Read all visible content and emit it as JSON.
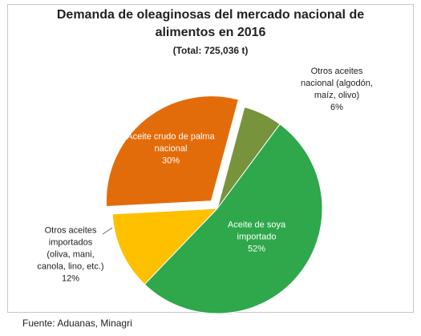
{
  "chart_data": {
    "type": "pie",
    "title": "Demanda de oleaginosas del mercado nacional de alimentos en 2016",
    "subtitle": "(Total: 725,036 t)",
    "categories": [
      "Otros aceites nacional (algodón, maíz, olivo)",
      "Aceite de soya importado",
      "Otros aceites importados (oliva, mani, canola, lino, etc.)",
      "Aceite crudo de palma nacional"
    ],
    "values": [
      6,
      52,
      12,
      30
    ],
    "value_labels": [
      "6%",
      "52%",
      "12%",
      "30%"
    ],
    "colors": [
      "#77933c",
      "#2ea84a",
      "#ffc000",
      "#e36c0a"
    ],
    "source": "Fuente: Aduanas, Minagri"
  }
}
